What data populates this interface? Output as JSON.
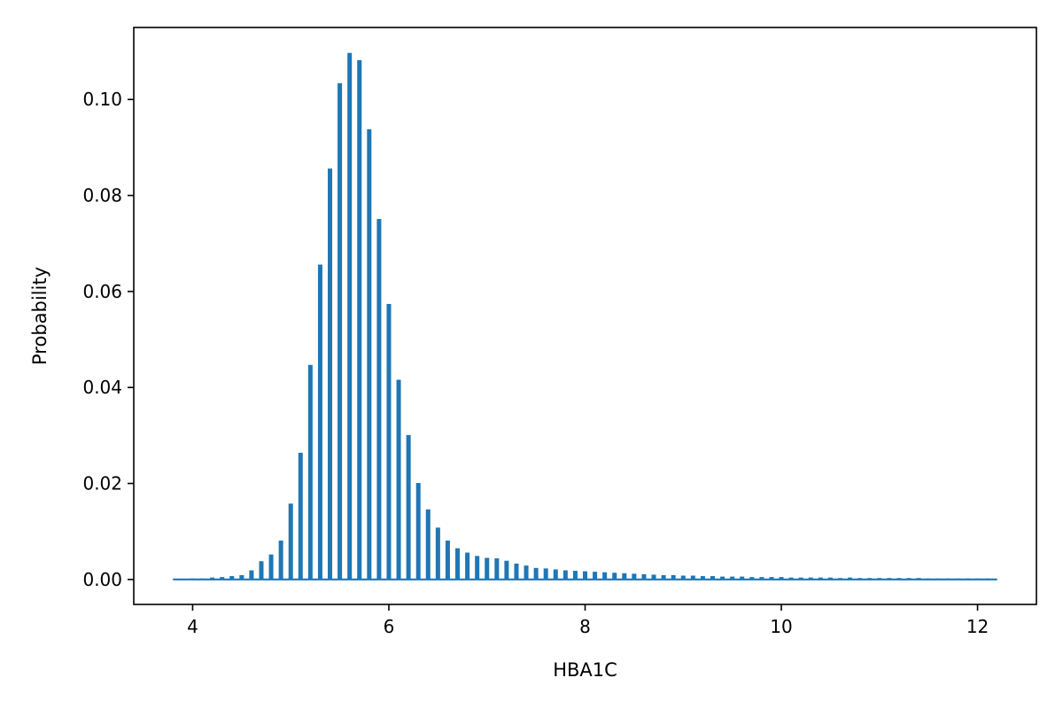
{
  "chart_data": {
    "type": "bar",
    "title": "",
    "xlabel": "HBA1C",
    "ylabel": "Probability",
    "xlim": [
      3.4,
      12.6
    ],
    "ylim": [
      -0.0052,
      0.115
    ],
    "xticks": [
      4,
      6,
      8,
      10,
      12
    ],
    "xtick_labels": [
      "4",
      "6",
      "8",
      "10",
      "12"
    ],
    "yticks": [
      0.0,
      0.02,
      0.04,
      0.06,
      0.08,
      0.1
    ],
    "ytick_labels": [
      "0.00",
      "0.02",
      "0.04",
      "0.06",
      "0.08",
      "0.10"
    ],
    "baseline": {
      "from": 3.8,
      "to": 12.2
    },
    "bar_color": "#1f77b4",
    "grid": false,
    "legend": "none",
    "series": [
      {
        "x": [
          3.9,
          4.0,
          4.1,
          4.2,
          4.3,
          4.4,
          4.5,
          4.6,
          4.7,
          4.8,
          4.9,
          5.0,
          5.1,
          5.2,
          5.3,
          5.4,
          5.5,
          5.6,
          5.7,
          5.8,
          5.9,
          6.0,
          6.1,
          6.2,
          6.3,
          6.4,
          6.5,
          6.6,
          6.7,
          6.8,
          6.9,
          7.0,
          7.1,
          7.2,
          7.3,
          7.4,
          7.5,
          7.6,
          7.7,
          7.8,
          7.9,
          8.0,
          8.1,
          8.2,
          8.3,
          8.4,
          8.5,
          8.6,
          8.7,
          8.8,
          8.9,
          9.0,
          9.1,
          9.2,
          9.3,
          9.4,
          9.5,
          9.6,
          9.7,
          9.8,
          9.9,
          10.0,
          10.1,
          10.2,
          10.3,
          10.4,
          10.5,
          10.6,
          10.7,
          10.8,
          10.9,
          11.0,
          11.1,
          11.2,
          11.3,
          11.4,
          11.5,
          11.6,
          11.7,
          11.8,
          11.9,
          12.0,
          12.1
        ],
        "values": [
          0.0001,
          0.0002,
          0.0002,
          0.0004,
          0.0005,
          0.0007,
          0.0009,
          0.0019,
          0.0038,
          0.0052,
          0.0081,
          0.0158,
          0.0264,
          0.0447,
          0.0656,
          0.0856,
          0.1034,
          0.1097,
          0.1082,
          0.0938,
          0.0751,
          0.0574,
          0.0416,
          0.0301,
          0.0201,
          0.0146,
          0.0108,
          0.0081,
          0.0065,
          0.0056,
          0.0049,
          0.0045,
          0.0044,
          0.0039,
          0.0033,
          0.0029,
          0.0024,
          0.0023,
          0.0021,
          0.0019,
          0.0018,
          0.0017,
          0.0016,
          0.0015,
          0.0014,
          0.0013,
          0.0012,
          0.0011,
          0.001,
          0.0009,
          0.0009,
          0.0008,
          0.0008,
          0.0007,
          0.0007,
          0.0006,
          0.0006,
          0.0006,
          0.0005,
          0.0005,
          0.0005,
          0.0005,
          0.0004,
          0.0004,
          0.0004,
          0.0004,
          0.0004,
          0.0003,
          0.0004,
          0.0003,
          0.0003,
          0.0003,
          0.0003,
          0.0003,
          0.0003,
          0.0003,
          0.0002,
          0.0002,
          0.0002,
          0.0002,
          0.0002,
          0.0002,
          0.0002
        ]
      }
    ]
  }
}
